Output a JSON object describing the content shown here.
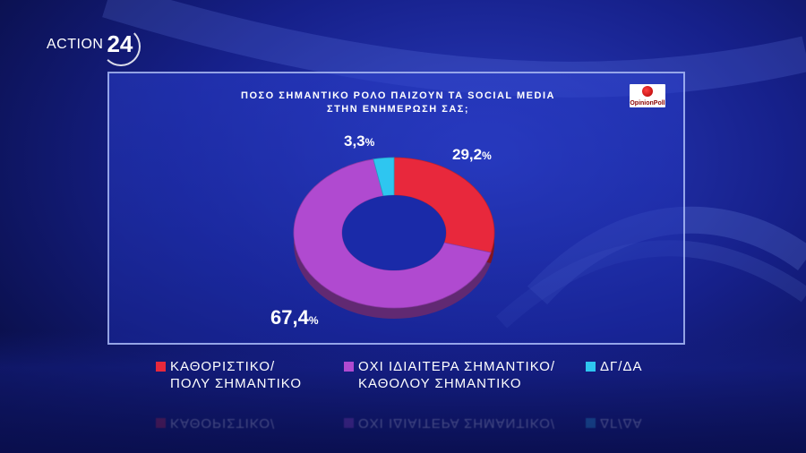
{
  "brand": {
    "logo_text": "ACTION",
    "logo_number": "24"
  },
  "source_logo": {
    "text": "OpinionPoll"
  },
  "chart_data": {
    "type": "pie",
    "variant": "donut",
    "title_lines": [
      "ΠΟΣΟ ΣΗΜΑΝΤΙΚΟ ΡΟΛΟ ΠΑΙΖΟΥΝ ΤΑ SOCIAL MEDIA",
      "ΣΤΗΝ ΕΝΗΜΕΡΩΣΗ ΣΑΣ;"
    ],
    "slices": [
      {
        "label_lines": [
          "ΚΑΘΟΡΙΣΤΙΚΟ/",
          "ΠΟΛΥ ΣΗΜΑΝΤΙΚΟ"
        ],
        "value": 29.2,
        "value_text": "29,2",
        "color": "#e8283c"
      },
      {
        "label_lines": [
          "ΟΧΙ ΙΔΙΑΙΤΕΡΑ ΣΗΜΑΝΤΙΚΟ/",
          "ΚΑΘΟΛΟΥ ΣΗΜΑΝΤΙΚΟ"
        ],
        "value": 67.4,
        "value_text": "67,4",
        "color": "#b04ad0"
      },
      {
        "label_lines": [
          "ΔΓ/ΔΑ"
        ],
        "value": 3.3,
        "value_text": "3,3",
        "color": "#2ec6f0"
      }
    ],
    "unit": "%"
  }
}
